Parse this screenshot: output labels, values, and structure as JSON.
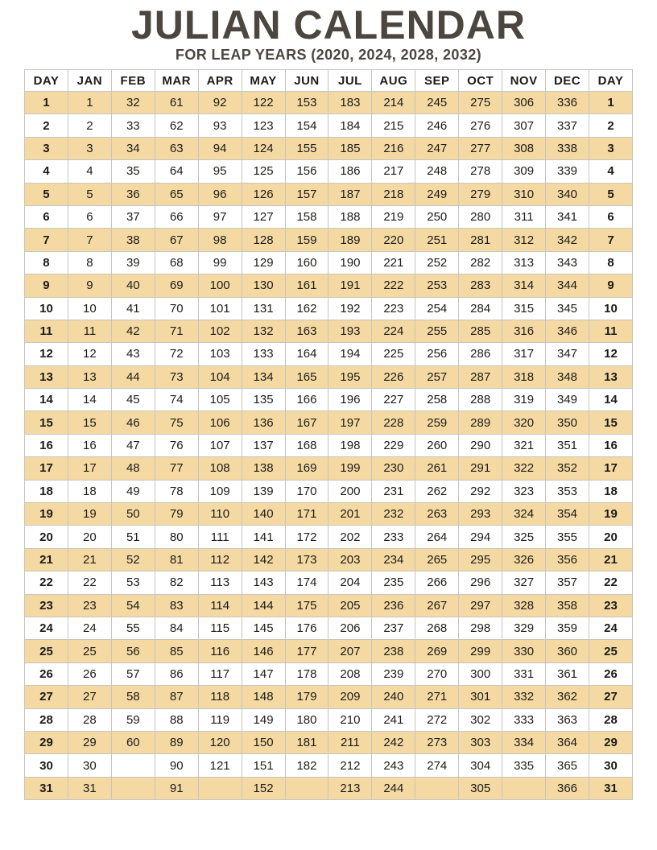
{
  "header": {
    "title": "JULIAN CALENDAR",
    "subtitle": "FOR LEAP YEARS (2020, 2024, 2028, 2032)"
  },
  "colors": {
    "title_text": "#4b463f",
    "cell_text": "#1d1c19",
    "border": "#c7c5c0",
    "row_highlight": "#f4d9a2",
    "row_plain": "#ffffff"
  },
  "table": {
    "headers": [
      "DAY",
      "JAN",
      "FEB",
      "MAR",
      "APR",
      "MAY",
      "JUN",
      "JUL",
      "AUG",
      "SEP",
      "OCT",
      "NOV",
      "DEC",
      "DAY"
    ],
    "rows": [
      [
        1,
        1,
        32,
        61,
        92,
        122,
        153,
        183,
        214,
        245,
        275,
        306,
        336,
        1
      ],
      [
        2,
        2,
        33,
        62,
        93,
        123,
        154,
        184,
        215,
        246,
        276,
        307,
        337,
        2
      ],
      [
        3,
        3,
        34,
        63,
        94,
        124,
        155,
        185,
        216,
        247,
        277,
        308,
        338,
        3
      ],
      [
        4,
        4,
        35,
        64,
        95,
        125,
        156,
        186,
        217,
        248,
        278,
        309,
        339,
        4
      ],
      [
        5,
        5,
        36,
        65,
        96,
        126,
        157,
        187,
        218,
        249,
        279,
        310,
        340,
        5
      ],
      [
        6,
        6,
        37,
        66,
        97,
        127,
        158,
        188,
        219,
        250,
        280,
        311,
        341,
        6
      ],
      [
        7,
        7,
        38,
        67,
        98,
        128,
        159,
        189,
        220,
        251,
        281,
        312,
        342,
        7
      ],
      [
        8,
        8,
        39,
        68,
        99,
        129,
        160,
        190,
        221,
        252,
        282,
        313,
        343,
        8
      ],
      [
        9,
        9,
        40,
        69,
        100,
        130,
        161,
        191,
        222,
        253,
        283,
        314,
        344,
        9
      ],
      [
        10,
        10,
        41,
        70,
        101,
        131,
        162,
        192,
        223,
        254,
        284,
        315,
        345,
        10
      ],
      [
        11,
        11,
        42,
        71,
        102,
        132,
        163,
        193,
        224,
        255,
        285,
        316,
        346,
        11
      ],
      [
        12,
        12,
        43,
        72,
        103,
        133,
        164,
        194,
        225,
        256,
        286,
        317,
        347,
        12
      ],
      [
        13,
        13,
        44,
        73,
        104,
        134,
        165,
        195,
        226,
        257,
        287,
        318,
        348,
        13
      ],
      [
        14,
        14,
        45,
        74,
        105,
        135,
        166,
        196,
        227,
        258,
        288,
        319,
        349,
        14
      ],
      [
        15,
        15,
        46,
        75,
        106,
        136,
        167,
        197,
        228,
        259,
        289,
        320,
        350,
        15
      ],
      [
        16,
        16,
        47,
        76,
        107,
        137,
        168,
        198,
        229,
        260,
        290,
        321,
        351,
        16
      ],
      [
        17,
        17,
        48,
        77,
        108,
        138,
        169,
        199,
        230,
        261,
        291,
        322,
        352,
        17
      ],
      [
        18,
        18,
        49,
        78,
        109,
        139,
        170,
        200,
        231,
        262,
        292,
        323,
        353,
        18
      ],
      [
        19,
        19,
        50,
        79,
        110,
        140,
        171,
        201,
        232,
        263,
        293,
        324,
        354,
        19
      ],
      [
        20,
        20,
        51,
        80,
        111,
        141,
        172,
        202,
        233,
        264,
        294,
        325,
        355,
        20
      ],
      [
        21,
        21,
        52,
        81,
        112,
        142,
        173,
        203,
        234,
        265,
        295,
        326,
        356,
        21
      ],
      [
        22,
        22,
        53,
        82,
        113,
        143,
        174,
        204,
        235,
        266,
        296,
        327,
        357,
        22
      ],
      [
        23,
        23,
        54,
        83,
        114,
        144,
        175,
        205,
        236,
        267,
        297,
        328,
        358,
        23
      ],
      [
        24,
        24,
        55,
        84,
        115,
        145,
        176,
        206,
        237,
        268,
        298,
        329,
        359,
        24
      ],
      [
        25,
        25,
        56,
        85,
        116,
        146,
        177,
        207,
        238,
        269,
        299,
        330,
        360,
        25
      ],
      [
        26,
        26,
        57,
        86,
        117,
        147,
        178,
        208,
        239,
        270,
        300,
        331,
        361,
        26
      ],
      [
        27,
        27,
        58,
        87,
        118,
        148,
        179,
        209,
        240,
        271,
        301,
        332,
        362,
        27
      ],
      [
        28,
        28,
        59,
        88,
        119,
        149,
        180,
        210,
        241,
        272,
        302,
        333,
        363,
        28
      ],
      [
        29,
        29,
        60,
        89,
        120,
        150,
        181,
        211,
        242,
        273,
        303,
        334,
        364,
        29
      ],
      [
        30,
        30,
        "",
        90,
        121,
        151,
        182,
        212,
        243,
        274,
        304,
        335,
        365,
        30
      ],
      [
        31,
        31,
        "",
        91,
        "",
        152,
        "",
        213,
        244,
        "",
        305,
        "",
        366,
        31
      ]
    ]
  }
}
